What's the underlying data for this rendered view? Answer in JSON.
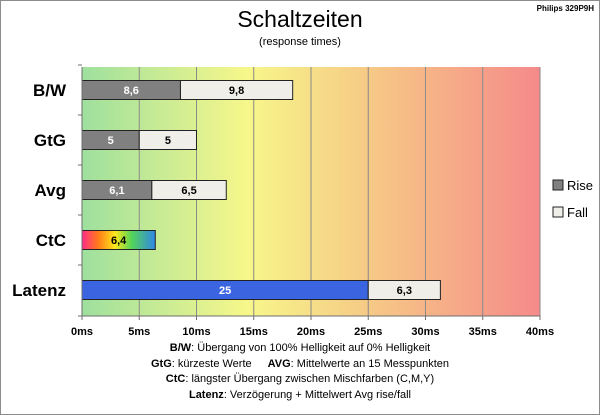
{
  "chart_data": {
    "type": "bar",
    "orientation": "horizontal",
    "stacked": true,
    "title": "Schaltzeiten",
    "subtitle": "(response times)",
    "corner_label": "Philips 329P9H",
    "categories": [
      "B/W",
      "GtG",
      "Avg",
      "CtC",
      "Latenz"
    ],
    "series": [
      {
        "name": "Rise",
        "values": [
          8.6,
          5,
          6.1,
          6.4,
          25
        ],
        "labels": [
          "8,6",
          "5",
          "6,1",
          "6,4",
          "25"
        ],
        "colors": [
          "#808080",
          "#808080",
          "#808080",
          "rainbow",
          "#3b64e0"
        ]
      },
      {
        "name": "Fall",
        "values": [
          9.8,
          5,
          6.5,
          null,
          6.3
        ],
        "labels": [
          "9,8",
          "5",
          "6,5",
          "",
          "6,3"
        ],
        "colors": [
          "#efeee8",
          "#efeee8",
          "#efeee8",
          null,
          "#efeee8"
        ]
      }
    ],
    "xlim": [
      0,
      40
    ],
    "xticks": [
      0,
      5,
      10,
      15,
      20,
      25,
      30,
      35,
      40
    ],
    "xtick_labels": [
      "0ms",
      "5ms",
      "10ms",
      "15ms",
      "20ms",
      "25ms",
      "30ms",
      "35ms",
      "40ms"
    ],
    "grid": true,
    "legend": {
      "placement": "right",
      "items": [
        "Rise",
        "Fall"
      ]
    },
    "background_gradient": [
      "#9ee09e",
      "#f7f78a",
      "#f6c486",
      "#f58a8a"
    ]
  },
  "footnotes": {
    "line1": {
      "key": "B/W",
      "text": ":  Übergang von 100% Helligkeit auf 0% Helligkeit"
    },
    "line2a": {
      "key": "GtG",
      "text": ": kürzeste  Werte"
    },
    "line2b": {
      "key": "AVG",
      "text": ": Mittelwerte  an 15 Messpunkten"
    },
    "line3": {
      "key": "CtC",
      "text": ": längster Übergang  zwischen Mischfarben  (C,M,Y)"
    },
    "line4": {
      "key": "Latenz",
      "text": ": Verzögerung  + Mittelwert  Avg rise/fall"
    }
  }
}
